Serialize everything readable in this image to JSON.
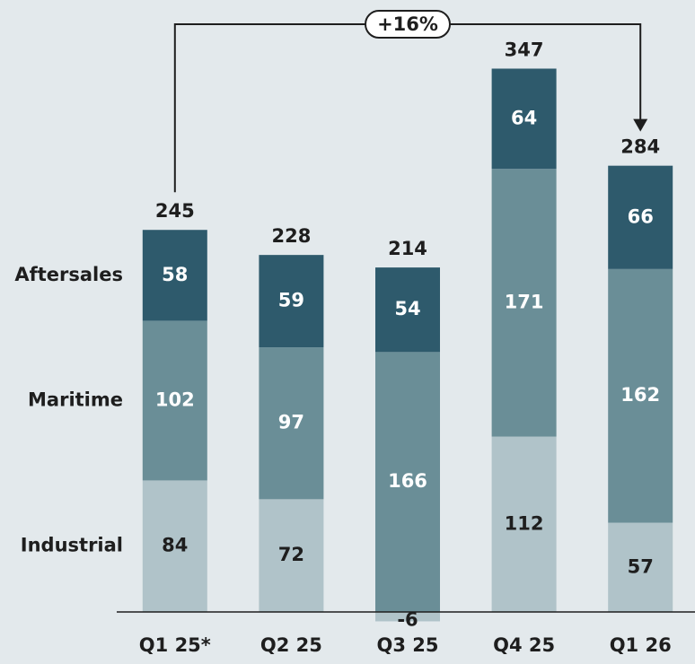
{
  "chart_data": {
    "type": "stacked_bar",
    "categories": [
      "Q1 25*",
      "Q2 25",
      "Q3 25",
      "Q4 25",
      "Q1 26"
    ],
    "series": [
      {
        "name": "Industrial",
        "color": "#b0c3c9",
        "values": [
          84,
          72,
          -6,
          112,
          57
        ]
      },
      {
        "name": "Maritime",
        "color": "#6a8e97",
        "values": [
          102,
          97,
          166,
          171,
          162
        ]
      },
      {
        "name": "Aftersales",
        "color": "#2e5a6c",
        "values": [
          58,
          59,
          54,
          64,
          66
        ]
      }
    ],
    "totals": [
      245,
      228,
      214,
      347,
      284
    ],
    "annotation": "+16%",
    "ylim": [
      -10,
      360
    ]
  }
}
